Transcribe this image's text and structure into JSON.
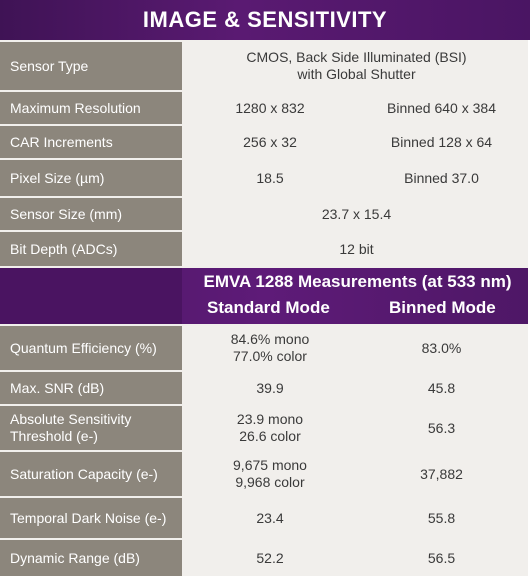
{
  "title": "IMAGE & SENSITIVITY",
  "specs": [
    {
      "label": "Sensor Type",
      "full": [
        "CMOS, Back Side Illuminated (BSI)",
        "with Global Shutter"
      ]
    },
    {
      "label": "Maximum Resolution",
      "a": "1280 x 832",
      "b": "Binned  640 x 384"
    },
    {
      "label": "CAR Increments",
      "a": "256 x 32",
      "b": "Binned  128 x 64"
    },
    {
      "label": "Pixel Size (µm)",
      "a": "18.5",
      "b": "Binned  37.0"
    },
    {
      "label": "Sensor Size (mm)",
      "full": [
        "23.7 x 15.4"
      ]
    },
    {
      "label": "Bit Depth (ADCs)",
      "full": [
        "12 bit"
      ]
    }
  ],
  "emva": {
    "title": "EMVA 1288 Measurements (at 533 nm)",
    "standard": "Standard Mode",
    "binned": "Binned Mode"
  },
  "measurements": [
    {
      "label": [
        "Quantum Efficiency (%)"
      ],
      "a": [
        "84.6% mono",
        "77.0% color"
      ],
      "b": [
        "83.0%"
      ]
    },
    {
      "label": [
        "Max. SNR (dB)"
      ],
      "a": [
        "39.9"
      ],
      "b": [
        "45.8"
      ]
    },
    {
      "label": [
        "Absolute Sensitivity",
        "Threshold (e-)"
      ],
      "a": [
        "23.9 mono",
        "26.6 color"
      ],
      "b": [
        "56.3"
      ]
    },
    {
      "label": [
        "Saturation Capacity (e-)"
      ],
      "a": [
        "9,675 mono",
        "9,968 color"
      ],
      "b": [
        "37,882"
      ]
    },
    {
      "label": [
        "Temporal Dark Noise (e-)"
      ],
      "a": [
        "23.4"
      ],
      "b": [
        "55.8"
      ]
    },
    {
      "label": [
        "Dynamic Range (dB)"
      ],
      "a": [
        "52.2"
      ],
      "b": [
        "56.5"
      ]
    }
  ]
}
